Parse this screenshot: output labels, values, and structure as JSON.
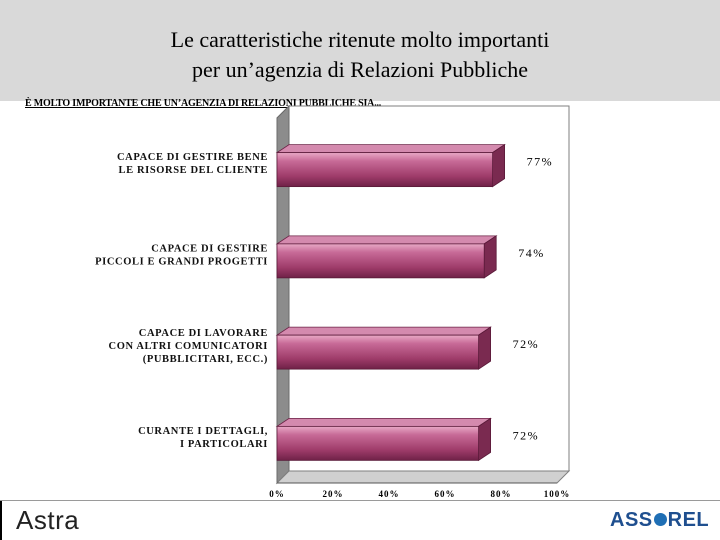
{
  "title_line1": "Le caratteristiche ritenute molto importanti",
  "title_line2": "per un’agenzia di Relazioni Pubbliche",
  "subtitle": "È MOLTO IMPORTANTE CHE UN’AGENZIA DI RELAZIONI PUBBLICHE SIA...",
  "footer": {
    "left_logo": "Astra",
    "right_logo_a": "ASS",
    "right_logo_b": "REL"
  },
  "chart_data": {
    "type": "bar",
    "orientation": "horizontal",
    "categories": [
      [
        "CAPACE DI GESTIRE BENE",
        "LE RISORSE DEL CLIENTE"
      ],
      [
        "CAPACE DI GESTIRE",
        "PICCOLI E GRANDI PROGETTI"
      ],
      [
        "CAPACE DI LAVORARE",
        "CON ALTRI COMUNICATORI",
        "(PUBBLICITARI, ECC.)"
      ],
      [
        "CURANTE I DETTAGLI,",
        "I PARTICOLARI"
      ]
    ],
    "values": [
      77,
      74,
      72,
      72
    ],
    "value_labels": [
      "77%",
      "74%",
      "72%",
      "72%"
    ],
    "xlim": [
      0,
      100
    ],
    "x_ticks": [
      "0%",
      "20%",
      "40%",
      "60%",
      "80%",
      "100%"
    ],
    "bar_color": "#b04a78",
    "grid": false
  }
}
